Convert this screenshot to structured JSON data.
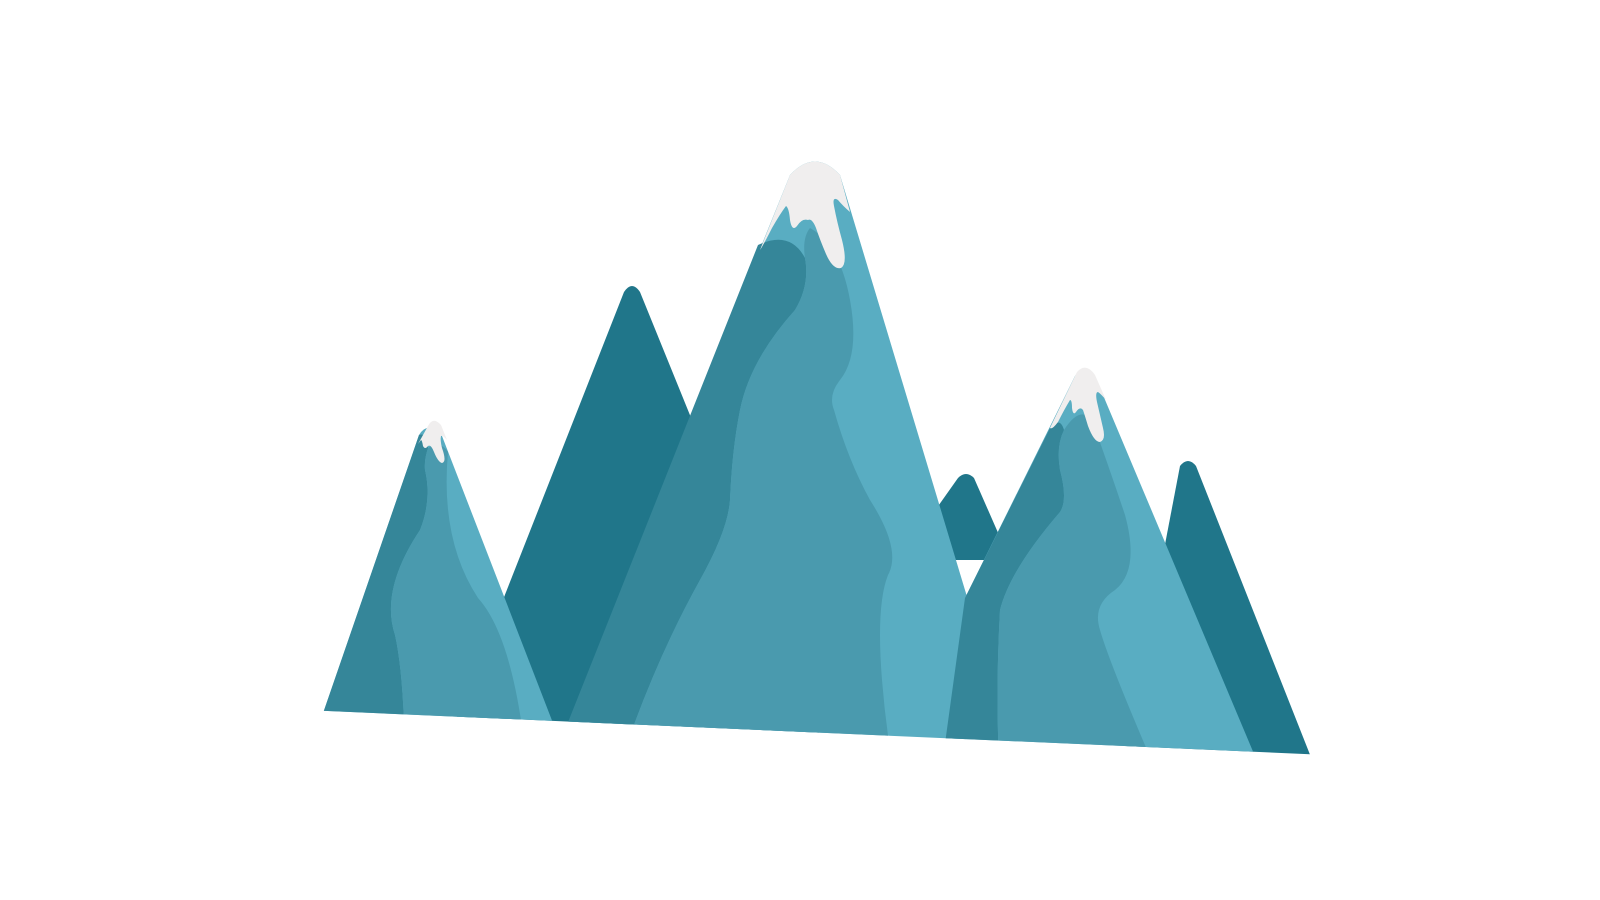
{
  "illustration": {
    "subject": "mountain-range",
    "colors": {
      "background": "#ffffff",
      "mountain_dark": "#20768a",
      "mountain_mid": "#358699",
      "mountain_shade": "#4a9aae",
      "mountain_light": "#59adc2",
      "snow": "#f0eeee"
    }
  }
}
